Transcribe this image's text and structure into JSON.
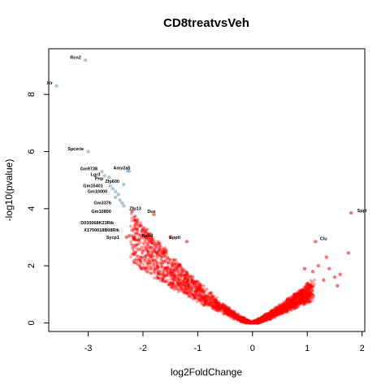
{
  "chart_data": {
    "type": "scatter",
    "title": "CD8treatvsVeh",
    "xlabel": "log2FoldChange",
    "ylabel": "-log10(pvalue)",
    "xlim": [
      -3.72,
      2.05
    ],
    "ylim": [
      -0.3,
      9.6
    ],
    "xticks": [
      -3,
      -2,
      -1,
      0,
      1,
      2
    ],
    "yticks": [
      0,
      2,
      4,
      6,
      8
    ],
    "grid": false,
    "colors": {
      "significant": "#ff0000",
      "highlight": "#6a96c8",
      "label": "#000000",
      "axis": "#000000"
    },
    "series": [
      {
        "points": [
          {
            "x": -3.05,
            "y": 9.2
          },
          {
            "x": -3.58,
            "y": 8.3
          },
          {
            "x": -3.0,
            "y": 6.0
          },
          {
            "x": -2.75,
            "y": 5.3
          },
          {
            "x": -2.7,
            "y": 5.15
          },
          {
            "x": -2.62,
            "y": 5.1
          },
          {
            "x": -2.25,
            "y": 5.32
          },
          {
            "x": -2.28,
            "y": 5.32
          },
          {
            "x": -2.35,
            "y": 4.85
          },
          {
            "x": -2.6,
            "y": 4.8
          },
          {
            "x": -2.55,
            "y": 4.7
          },
          {
            "x": -2.5,
            "y": 4.6
          },
          {
            "x": -2.45,
            "y": 4.5
          },
          {
            "x": -2.5,
            "y": 4.4
          },
          {
            "x": -2.42,
            "y": 4.3
          },
          {
            "x": -2.38,
            "y": 4.2
          },
          {
            "x": -2.35,
            "y": 4.1
          }
        ]
      },
      {
        "points": [
          {
            "x": -2.2,
            "y": 3.9
          },
          {
            "x": -1.8,
            "y": 3.8
          },
          {
            "x": -1.2,
            "y": 2.85
          },
          {
            "x": 1.15,
            "y": 2.85
          },
          {
            "x": 1.8,
            "y": 3.85
          },
          {
            "x": 1.75,
            "y": 2.45
          },
          {
            "x": -2.15,
            "y": 3.6
          },
          {
            "x": -2.1,
            "y": 3.5
          },
          {
            "x": -2.05,
            "y": 3.4
          },
          {
            "x": -2.0,
            "y": 3.3
          },
          {
            "x": -1.95,
            "y": 3.2
          },
          {
            "x": -1.9,
            "y": 3.1
          },
          {
            "x": -2.25,
            "y": 3.05
          },
          {
            "x": -2.3,
            "y": 3.0
          },
          {
            "x": -1.5,
            "y": 3.0
          },
          {
            "x": 1.35,
            "y": 2.3
          },
          {
            "x": 1.2,
            "y": 2.0
          },
          {
            "x": 1.1,
            "y": 1.8
          },
          {
            "x": 1.4,
            "y": 1.9
          },
          {
            "x": 1.5,
            "y": 1.6
          },
          {
            "x": 1.6,
            "y": 1.7
          },
          {
            "x": 1.3,
            "y": 1.5
          },
          {
            "x": 0.95,
            "y": 1.9
          },
          {
            "x": 1.55,
            "y": 1.3
          }
        ]
      }
    ],
    "labels": [
      {
        "text": "Rcn2",
        "x": -3.1,
        "y": 9.25,
        "anchor": "end"
      },
      {
        "text": "Xlr",
        "x": -3.62,
        "y": 8.35,
        "anchor": "end"
      },
      {
        "text": "Spcerie",
        "x": -3.05,
        "y": 6.05,
        "anchor": "end"
      },
      {
        "text": "Gm9738",
        "x": -2.8,
        "y": 5.35,
        "anchor": "end"
      },
      {
        "text": "Amy2a5",
        "x": -2.2,
        "y": 5.37,
        "anchor": "end"
      },
      {
        "text": "Lgr3",
        "x": -2.75,
        "y": 5.15,
        "anchor": "end"
      },
      {
        "text": "Pnp",
        "x": -2.8,
        "y": 5.0,
        "anchor": "middle"
      },
      {
        "text": "Zfp600",
        "x": -2.4,
        "y": 4.9,
        "anchor": "end"
      },
      {
        "text": "Gm15401",
        "x": -2.7,
        "y": 4.75,
        "anchor": "end"
      },
      {
        "text": "Gm10000",
        "x": -2.62,
        "y": 4.55,
        "anchor": "end"
      },
      {
        "text": "Gm3376",
        "x": -2.55,
        "y": 4.15,
        "anchor": "end"
      },
      {
        "text": "Zfp13",
        "x": -2.28,
        "y": 3.95,
        "anchor": "start"
      },
      {
        "text": "Gm10800",
        "x": -2.55,
        "y": 3.85,
        "anchor": "end"
      },
      {
        "text": "Dux",
        "x": -1.95,
        "y": 3.85,
        "anchor": "start"
      },
      {
        "text": "Sppl",
        "x": 1.88,
        "y": 3.88,
        "anchor": "start"
      },
      {
        "text": "D030068K23Rik",
        "x": -2.5,
        "y": 3.45,
        "anchor": "end"
      },
      {
        "text": "X1700018B08Rik",
        "x": -2.4,
        "y": 3.2,
        "anchor": "end"
      },
      {
        "text": "Epptl",
        "x": -1.55,
        "y": 2.95,
        "anchor": "start"
      },
      {
        "text": "Clu",
        "x": 1.2,
        "y": 2.9,
        "anchor": "start"
      },
      {
        "text": "Nand",
        "x": -2.05,
        "y": 3.0,
        "anchor": "start"
      },
      {
        "text": "Sycp1",
        "x": -2.4,
        "y": 2.95,
        "anchor": "end"
      }
    ]
  }
}
